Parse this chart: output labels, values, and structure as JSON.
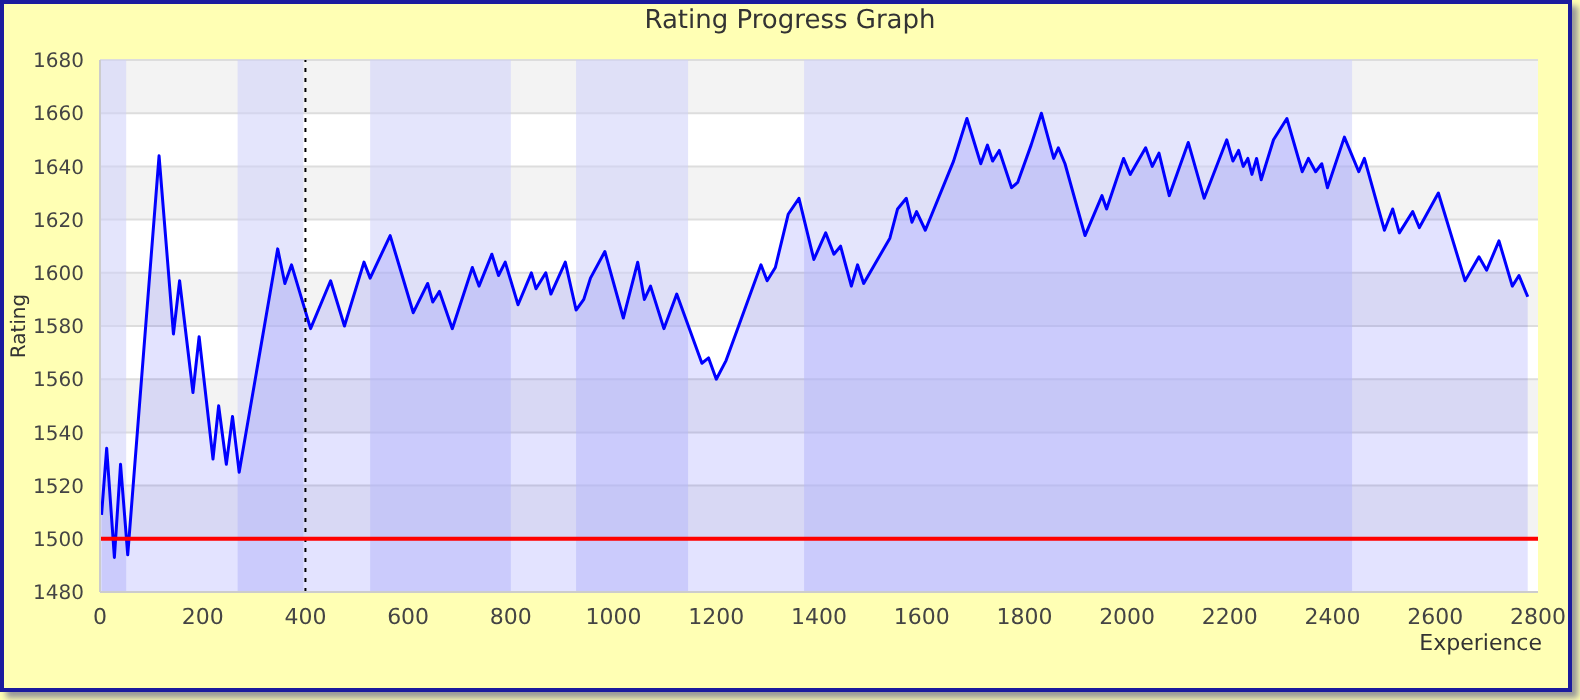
{
  "chart_data": {
    "type": "area",
    "title": "Rating Progress Graph",
    "xlabel": "Experience",
    "ylabel": "Rating",
    "series": [
      {
        "color": "#0000ff",
        "x": [
          3,
          13,
          28,
          40,
          54,
          115,
          143,
          155,
          181,
          193,
          220,
          231,
          246,
          258,
          271,
          346,
          360,
          373,
          410,
          449,
          476,
          514,
          526,
          565,
          610,
          638,
          648,
          661,
          686,
          725,
          738,
          763,
          776,
          789,
          814,
          840,
          849,
          868,
          878,
          906,
          927,
          942,
          955,
          983,
          1019,
          1047,
          1060,
          1072,
          1098,
          1123,
          1172,
          1185,
          1200,
          1219,
          1287,
          1299,
          1315,
          1340,
          1361,
          1390,
          1413,
          1429,
          1442,
          1463,
          1475,
          1487,
          1538,
          1553,
          1570,
          1581,
          1590,
          1607,
          1662,
          1688,
          1715,
          1728,
          1738,
          1751,
          1775,
          1787,
          1813,
          1833,
          1857,
          1866,
          1879,
          1918,
          1951,
          1960,
          1993,
          2006,
          2036,
          2049,
          2062,
          2082,
          2119,
          2150,
          2194,
          2206,
          2217,
          2226,
          2235,
          2243,
          2252,
          2261,
          2285,
          2311,
          2341,
          2353,
          2367,
          2379,
          2390,
          2423,
          2451,
          2462,
          2501,
          2517,
          2530,
          2556,
          2569,
          2606,
          2658,
          2685,
          2700,
          2724,
          2750,
          2763,
          2780
        ],
        "values": [
          1509,
          1534,
          1493,
          1528,
          1494,
          1644,
          1577,
          1597,
          1555,
          1576,
          1530,
          1550,
          1528,
          1546,
          1525,
          1609,
          1596,
          1603,
          1579,
          1597,
          1580,
          1604,
          1598,
          1614,
          1585,
          1596,
          1589,
          1593,
          1579,
          1602,
          1595,
          1607,
          1599,
          1604,
          1588,
          1600,
          1594,
          1600,
          1592,
          1604,
          1586,
          1590,
          1598,
          1608,
          1583,
          1604,
          1590,
          1595,
          1579,
          1592,
          1566,
          1568,
          1560,
          1567,
          1603,
          1597,
          1602,
          1622,
          1628,
          1605,
          1615,
          1607,
          1610,
          1595,
          1603,
          1596,
          1613,
          1624,
          1628,
          1619,
          1623,
          1616,
          1642,
          1658,
          1641,
          1648,
          1642,
          1646,
          1632,
          1634,
          1648,
          1660,
          1643,
          1647,
          1641,
          1614,
          1629,
          1624,
          1643,
          1637,
          1647,
          1640,
          1645,
          1629,
          1649,
          1628,
          1650,
          1642,
          1646,
          1640,
          1643,
          1637,
          1643,
          1635,
          1650,
          1658,
          1638,
          1643,
          1638,
          1641,
          1632,
          1651,
          1638,
          1643,
          1616,
          1624,
          1615,
          1623,
          1617,
          1630,
          1597,
          1606,
          1601,
          1612,
          1595,
          1599,
          1591
        ]
      }
    ],
    "xlim": [
      0,
      2800
    ],
    "xticks": [
      0,
      200,
      400,
      600,
      800,
      1000,
      1200,
      1400,
      1600,
      1800,
      2000,
      2200,
      2400,
      2600,
      2800
    ],
    "ylim": [
      1480,
      1680
    ],
    "yticks": [
      1480,
      1500,
      1520,
      1540,
      1560,
      1580,
      1600,
      1620,
      1640,
      1660,
      1680
    ],
    "grid": "y",
    "legend": false,
    "ref_lines": [
      {
        "axis": "x",
        "value": 400,
        "color": "#000000",
        "line_style": "dotted"
      },
      {
        "axis": "y",
        "value": 1500,
        "color": "#ff0000",
        "line_style": "solid"
      }
    ],
    "bands": [
      {
        "axis": "x",
        "from": 0,
        "to": 51,
        "color": "#cdcff9"
      },
      {
        "axis": "x",
        "from": 268,
        "to": 396,
        "color": "#cdcff9"
      },
      {
        "axis": "x",
        "from": 526,
        "to": 800,
        "color": "#cdcff9"
      },
      {
        "axis": "x",
        "from": 927,
        "to": 1145,
        "color": "#cdcff9"
      },
      {
        "axis": "x",
        "from": 1371,
        "to": 2438,
        "color": "#cdcff9"
      }
    ]
  }
}
